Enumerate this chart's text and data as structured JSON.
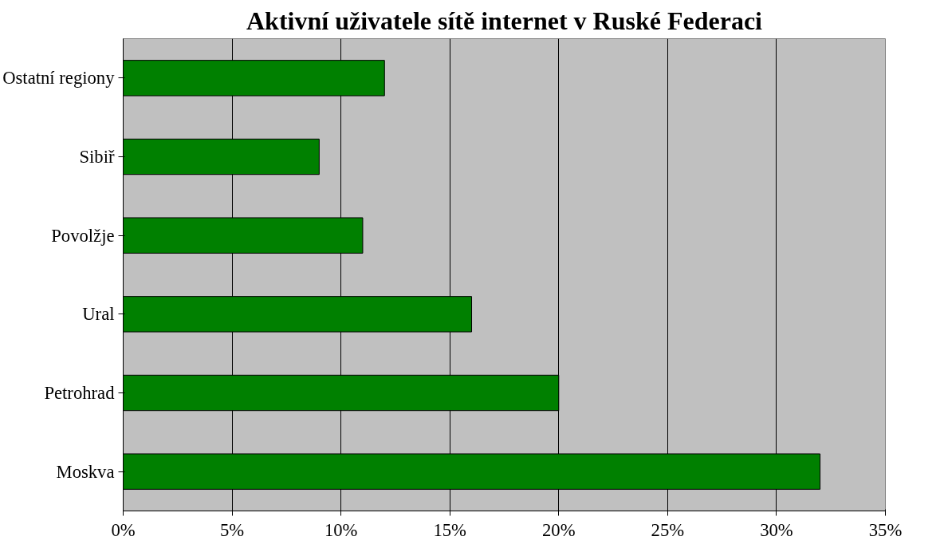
{
  "chart_data": {
    "type": "bar",
    "orientation": "horizontal",
    "title": "Aktivní uživatele sítě internet v Ruské Federaci",
    "categories": [
      "Ostatní regiony",
      "Sibiř",
      "Povolžje",
      "Ural",
      "Petrohrad",
      "Moskva"
    ],
    "values": [
      12,
      9,
      11,
      16,
      20,
      32
    ],
    "color": "#008000",
    "xlim": [
      0,
      35
    ],
    "xticks": [
      {
        "value": 0,
        "label": "0%"
      },
      {
        "value": 5,
        "label": "5%"
      },
      {
        "value": 10,
        "label": "10%"
      },
      {
        "value": 15,
        "label": "15%"
      },
      {
        "value": 20,
        "label": "20%"
      },
      {
        "value": 25,
        "label": "25%"
      },
      {
        "value": 30,
        "label": "30%"
      },
      {
        "value": 35,
        "label": "35%"
      }
    ],
    "grid": "x"
  }
}
